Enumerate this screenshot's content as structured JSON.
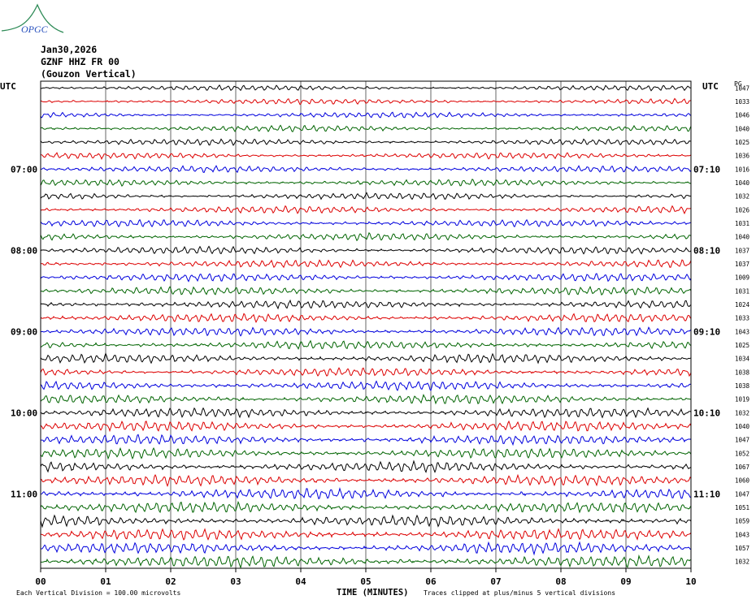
{
  "logo": {
    "text": "OPGC",
    "colors": {
      "curve": "#2e8b57",
      "text": "#2a52be"
    }
  },
  "header": {
    "date": "Jan30,2026",
    "station": "GZNF HHZ FR 00",
    "location": "(Gouzon Vertical)"
  },
  "chart_data": {
    "type": "line",
    "xlabel": "TIME (MINUTES)",
    "x_ticks": [
      "00",
      "01",
      "02",
      "03",
      "04",
      "05",
      "06",
      "07",
      "08",
      "09",
      "10"
    ],
    "xlim": [
      0,
      10
    ],
    "left_axis_title": "UTC",
    "right_axis_title": "UTC",
    "right_col_title": "PG",
    "left_hour_labels": [
      {
        "row": 6,
        "label": "07:00"
      },
      {
        "row": 12,
        "label": "08:00"
      },
      {
        "row": 18,
        "label": "09:00"
      },
      {
        "row": 24,
        "label": "10:00"
      },
      {
        "row": 30,
        "label": "11:00"
      }
    ],
    "right_hour_labels": [
      {
        "row": 6,
        "label": "07:10"
      },
      {
        "row": 12,
        "label": "08:10"
      },
      {
        "row": 18,
        "label": "09:10"
      },
      {
        "row": 24,
        "label": "10:10"
      },
      {
        "row": 30,
        "label": "11:10"
      }
    ],
    "trace_colors": [
      "#000000",
      "#dd0000",
      "#0000dd",
      "#006400"
    ],
    "trace_gains": [
      "1047",
      "1033",
      "1046",
      "1040",
      "1025",
      "1036",
      "1016",
      "1040",
      "1032",
      "1026",
      "1031",
      "1040",
      "1037",
      "1037",
      "1009",
      "1031",
      "1024",
      "1033",
      "1043",
      "1025",
      "1034",
      "1038",
      "1038",
      "1019",
      "1032",
      "1040",
      "1047",
      "1052",
      "1067",
      "1060",
      "1047",
      "1051",
      "1059",
      "1043",
      "1057",
      "1032"
    ],
    "grid": true
  },
  "footer": {
    "vertical_division": "Each Vertical Division =  100.00 microvolts",
    "clipping": "Traces clipped at plus/minus 5 vertical divisions"
  }
}
